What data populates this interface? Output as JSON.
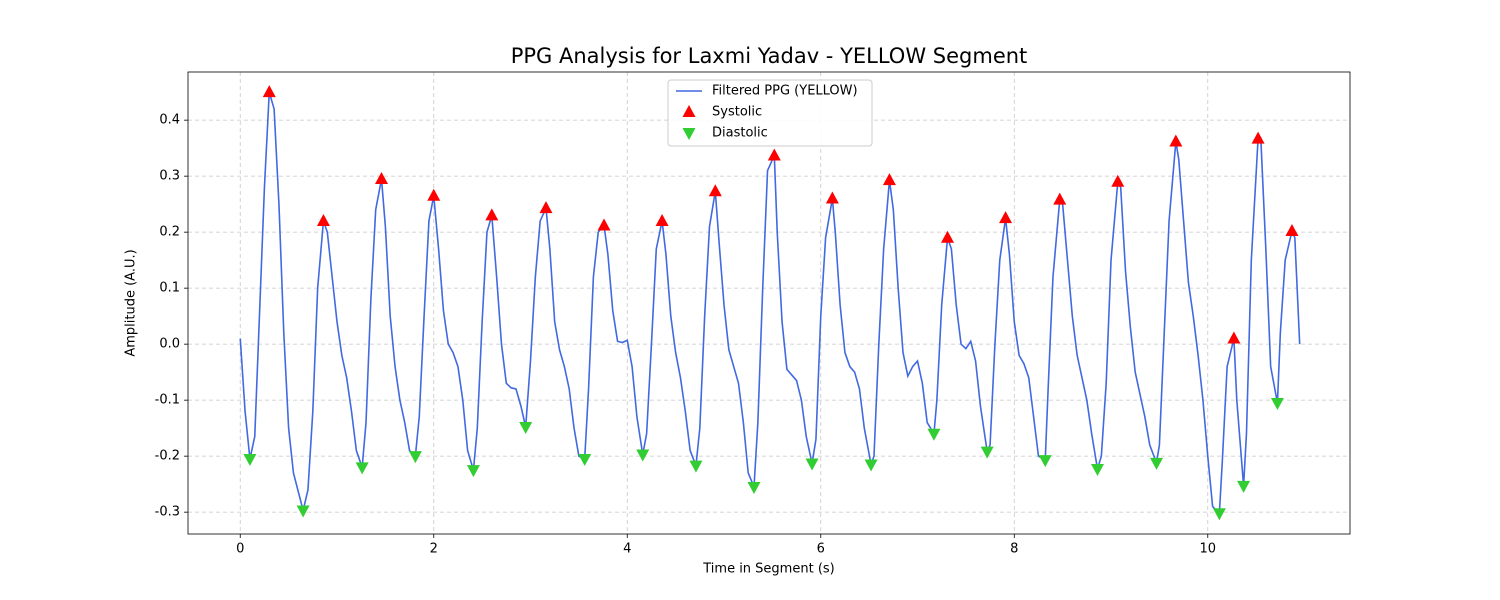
{
  "chart_data": {
    "type": "line",
    "title": "PPG Analysis for Laxmi Yadav - YELLOW Segment",
    "x_label": "Time in Segment (s)",
    "y_label": "Amplitude (A.U.)",
    "xlim": [
      -0.54,
      11.47
    ],
    "ylim": [
      -0.339,
      0.486
    ],
    "xticks": [
      0,
      2,
      4,
      6,
      8,
      10
    ],
    "yticks": [
      -0.3,
      -0.2,
      -0.1,
      {
        "value": 0,
        "label": "0.0"
      },
      0.1,
      0.2,
      0.3,
      0.4
    ],
    "grid": true,
    "legend": "upper center",
    "series": [
      {
        "name": "Filtered PPG (YELLOW)",
        "type": "line",
        "color": "#4169e1",
        "x": [
          0,
          0.05,
          0.1,
          0.15,
          0.25,
          0.3,
          0.35,
          0.4,
          0.45,
          0.5,
          0.55,
          0.65,
          0.7,
          0.75,
          0.8,
          0.86,
          0.9,
          0.95,
          1.0,
          1.05,
          1.1,
          1.15,
          1.2,
          1.26,
          1.3,
          1.35,
          1.4,
          1.46,
          1.5,
          1.55,
          1.6,
          1.65,
          1.7,
          1.75,
          1.81,
          1.85,
          1.9,
          1.95,
          2.0,
          2.05,
          2.1,
          2.15,
          2.2,
          2.25,
          2.3,
          2.35,
          2.41,
          2.45,
          2.5,
          2.55,
          2.6,
          2.65,
          2.7,
          2.75,
          2.8,
          2.85,
          2.9,
          2.95,
          3.0,
          3.05,
          3.1,
          3.16,
          3.2,
          3.25,
          3.3,
          3.35,
          3.4,
          3.45,
          3.5,
          3.56,
          3.6,
          3.65,
          3.7,
          3.76,
          3.8,
          3.85,
          3.9,
          3.95,
          4.0,
          4.05,
          4.1,
          4.16,
          4.2,
          4.25,
          4.3,
          4.36,
          4.4,
          4.45,
          4.5,
          4.55,
          4.6,
          4.65,
          4.71,
          4.75,
          4.8,
          4.85,
          4.91,
          4.95,
          5.0,
          5.05,
          5.1,
          5.15,
          5.2,
          5.25,
          5.31,
          5.35,
          5.4,
          5.45,
          5.52,
          5.55,
          5.6,
          5.65,
          5.7,
          5.75,
          5.8,
          5.85,
          5.91,
          5.95,
          6.0,
          6.05,
          6.12,
          6.15,
          6.2,
          6.25,
          6.3,
          6.35,
          6.4,
          6.45,
          6.52,
          6.55,
          6.6,
          6.65,
          6.71,
          6.75,
          6.8,
          6.85,
          6.9,
          6.95,
          7.0,
          7.05,
          7.1,
          7.17,
          7.2,
          7.25,
          7.31,
          7.35,
          7.4,
          7.45,
          7.5,
          7.55,
          7.6,
          7.65,
          7.72,
          7.75,
          7.8,
          7.85,
          7.91,
          7.95,
          8.0,
          8.05,
          8.1,
          8.15,
          8.2,
          8.25,
          8.32,
          8.35,
          8.4,
          8.47,
          8.5,
          8.55,
          8.6,
          8.65,
          8.7,
          8.75,
          8.8,
          8.86,
          8.9,
          8.95,
          9.0,
          9.07,
          9.1,
          9.15,
          9.2,
          9.25,
          9.3,
          9.35,
          9.4,
          9.47,
          9.5,
          9.55,
          9.6,
          9.67,
          9.7,
          9.75,
          9.8,
          9.85,
          9.9,
          9.95,
          10.0,
          10.05,
          10.12,
          10.15,
          10.2,
          10.27,
          10.3,
          10.37,
          10.4,
          10.45,
          10.52,
          10.55,
          10.6,
          10.65,
          10.72,
          10.75,
          10.8,
          10.87,
          10.9,
          10.95
        ],
        "values": [
          0.01,
          -0.12,
          -0.205,
          -0.165,
          0.28,
          0.45,
          0.42,
          0.25,
          0.02,
          -0.15,
          -0.23,
          -0.297,
          -0.26,
          -0.12,
          0.1,
          0.22,
          0.2,
          0.12,
          0.04,
          -0.02,
          -0.06,
          -0.12,
          -0.19,
          -0.22,
          -0.14,
          0.08,
          0.24,
          0.295,
          0.21,
          0.05,
          -0.04,
          -0.1,
          -0.14,
          -0.19,
          -0.2,
          -0.13,
          0.05,
          0.22,
          0.265,
          0.17,
          0.06,
          0.0,
          -0.015,
          -0.04,
          -0.1,
          -0.19,
          -0.225,
          -0.15,
          0.04,
          0.2,
          0.23,
          0.12,
          0.0,
          -0.07,
          -0.078,
          -0.08,
          -0.11,
          -0.148,
          -0.03,
          0.12,
          0.22,
          0.243,
          0.17,
          0.04,
          -0.01,
          -0.04,
          -0.08,
          -0.15,
          -0.2,
          -0.205,
          -0.08,
          0.12,
          0.2,
          0.212,
          0.16,
          0.06,
          0.005,
          0.003,
          0.007,
          -0.04,
          -0.13,
          -0.197,
          -0.16,
          0.0,
          0.17,
          0.22,
          0.16,
          0.05,
          -0.015,
          -0.06,
          -0.12,
          -0.19,
          -0.217,
          -0.15,
          0.05,
          0.21,
          0.273,
          0.18,
          0.07,
          -0.01,
          -0.04,
          -0.07,
          -0.14,
          -0.23,
          -0.255,
          -0.14,
          0.1,
          0.31,
          0.337,
          0.2,
          0.04,
          -0.045,
          -0.055,
          -0.065,
          -0.1,
          -0.165,
          -0.213,
          -0.17,
          0.05,
          0.19,
          0.26,
          0.2,
          0.07,
          -0.015,
          -0.04,
          -0.05,
          -0.08,
          -0.15,
          -0.215,
          -0.2,
          0.0,
          0.17,
          0.293,
          0.24,
          0.1,
          -0.015,
          -0.057,
          -0.04,
          -0.03,
          -0.07,
          -0.14,
          -0.16,
          -0.1,
          0.07,
          0.19,
          0.17,
          0.07,
          0.0,
          -0.008,
          0.005,
          -0.03,
          -0.11,
          -0.192,
          -0.18,
          0.0,
          0.15,
          0.225,
          0.16,
          0.04,
          -0.02,
          -0.035,
          -0.06,
          -0.13,
          -0.2,
          -0.207,
          -0.08,
          0.12,
          0.258,
          0.25,
          0.15,
          0.05,
          -0.02,
          -0.06,
          -0.1,
          -0.16,
          -0.223,
          -0.2,
          -0.07,
          0.15,
          0.29,
          0.28,
          0.13,
          0.03,
          -0.05,
          -0.09,
          -0.13,
          -0.18,
          -0.212,
          -0.18,
          0.02,
          0.22,
          0.362,
          0.33,
          0.22,
          0.11,
          0.05,
          -0.02,
          -0.1,
          -0.2,
          -0.29,
          -0.302,
          -0.21,
          -0.04,
          0.01,
          -0.1,
          -0.253,
          -0.16,
          0.15,
          0.367,
          0.36,
          0.17,
          -0.04,
          -0.105,
          0.02,
          0.15,
          0.202,
          0.19,
          0.0
        ]
      },
      {
        "name": "Systolic",
        "type": "scatter",
        "marker": "^",
        "color": "#ff0000",
        "x": [
          0.3,
          0.86,
          1.46,
          2.0,
          2.6,
          3.16,
          3.76,
          4.36,
          4.91,
          5.52,
          6.12,
          6.71,
          7.31,
          7.91,
          8.47,
          9.07,
          9.67,
          10.27,
          10.52,
          10.87
        ],
        "values": [
          0.45,
          0.22,
          0.295,
          0.265,
          0.23,
          0.243,
          0.212,
          0.22,
          0.273,
          0.337,
          0.26,
          0.293,
          0.19,
          0.225,
          0.258,
          0.29,
          0.362,
          0.01,
          0.367,
          0.202
        ]
      },
      {
        "name": "Diastolic",
        "type": "scatter",
        "marker": "v",
        "color": "#32cd32",
        "x": [
          0.1,
          0.65,
          1.26,
          1.81,
          2.41,
          2.95,
          3.56,
          4.16,
          4.71,
          5.31,
          5.91,
          6.52,
          7.17,
          7.72,
          8.32,
          8.86,
          9.47,
          10.12,
          10.37,
          10.72
        ],
        "values": [
          -0.205,
          -0.297,
          -0.22,
          -0.2,
          -0.225,
          -0.148,
          -0.205,
          -0.197,
          -0.217,
          -0.255,
          -0.213,
          -0.215,
          -0.16,
          -0.192,
          -0.207,
          -0.223,
          -0.212,
          -0.302,
          -0.253,
          -0.105
        ]
      }
    ]
  }
}
